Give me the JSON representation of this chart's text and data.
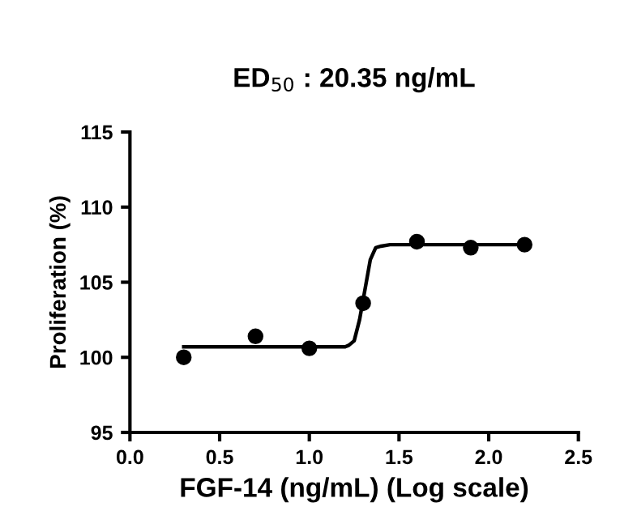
{
  "chart_data": {
    "type": "scatter",
    "title": "ED$_{50}$ : 20.35 ng/mL",
    "xlabel": "FGF-14 (ng/mL) (Log scale)",
    "ylabel": "Proliferation (%)",
    "xlim": [
      0.0,
      2.5
    ],
    "xticks": [
      {
        "value": 0.0,
        "label": "0.0"
      },
      0.5,
      {
        "value": 1.0,
        "label": "1.0"
      },
      1.5,
      {
        "value": 2.0,
        "label": "2.0"
      },
      2.5
    ],
    "ylim": [
      95,
      115
    ],
    "yticks": [
      95,
      100,
      105,
      110,
      115
    ],
    "grid": false,
    "legend": false,
    "series": [
      {
        "color": "#000000",
        "marker": "circle",
        "x": [
          0.3,
          0.7,
          1.0,
          1.3,
          1.6,
          1.9,
          2.2
        ],
        "values": [
          100.0,
          101.4,
          100.6,
          103.6,
          107.7,
          107.3,
          107.5
        ]
      },
      {
        "type": "line",
        "color": "#000000",
        "marker": "none",
        "line_style": "solid",
        "x": [
          0.3,
          1.2,
          1.22,
          1.25,
          1.28,
          1.31,
          1.34,
          1.37,
          1.4,
          1.45,
          2.2
        ],
        "values": [
          100.7,
          100.7,
          100.8,
          101.1,
          102.5,
          104.5,
          106.5,
          107.3,
          107.4,
          107.5,
          107.5
        ]
      }
    ]
  }
}
